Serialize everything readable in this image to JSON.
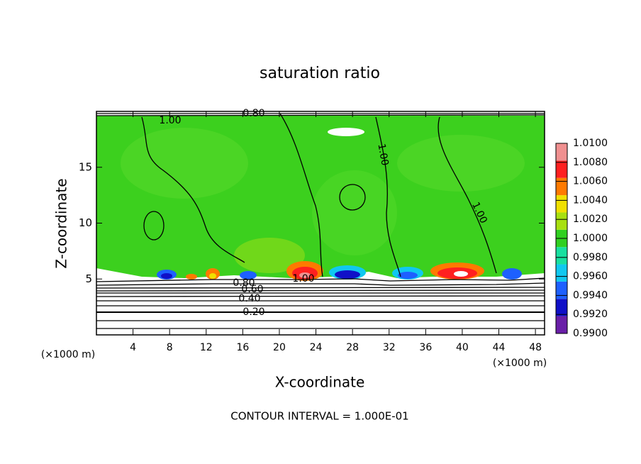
{
  "chart_data": {
    "type": "contour",
    "title": "saturation ratio",
    "xlabel": "X-coordinate",
    "ylabel": "Z-coordinate",
    "x_unit": "(×1000 m)",
    "y_unit": "(×1000 m)",
    "note": "CONTOUR INTERVAL = 1.000E-01",
    "xlim": [
      0,
      49
    ],
    "xticks": [
      4,
      8,
      12,
      16,
      20,
      24,
      28,
      32,
      36,
      40,
      44,
      48
    ],
    "ylim": [
      0,
      20
    ],
    "yticks": [
      5,
      10,
      15
    ],
    "colorbar": {
      "colors": [
        "#6a1fa8",
        "#1010c8",
        "#1e60ff",
        "#10c8f0",
        "#18e0a0",
        "#30d020",
        "#a8e010",
        "#f0e000",
        "#ff7a00",
        "#ff2020",
        "#f09090"
      ],
      "ticks": [
        {
          "value": 0.99,
          "label": "0.9900"
        },
        {
          "value": 0.992,
          "label": "0.9920"
        },
        {
          "value": 0.994,
          "label": "0.9940"
        },
        {
          "value": 0.996,
          "label": "0.9960"
        },
        {
          "value": 0.998,
          "label": "0.9980"
        },
        {
          "value": 1.0,
          "label": "1.0000"
        },
        {
          "value": 1.002,
          "label": "1.0020"
        },
        {
          "value": 1.004,
          "label": "1.0040"
        },
        {
          "value": 1.006,
          "label": "1.0060"
        },
        {
          "value": 1.008,
          "label": "1.0080"
        },
        {
          "value": 1.01,
          "label": "1.0100"
        }
      ]
    },
    "contour_labels": [
      "1.00",
      "1.00",
      "1.00",
      "1.00",
      "0.80",
      "0.80",
      "0.60",
      "0.40",
      "0.20"
    ]
  }
}
